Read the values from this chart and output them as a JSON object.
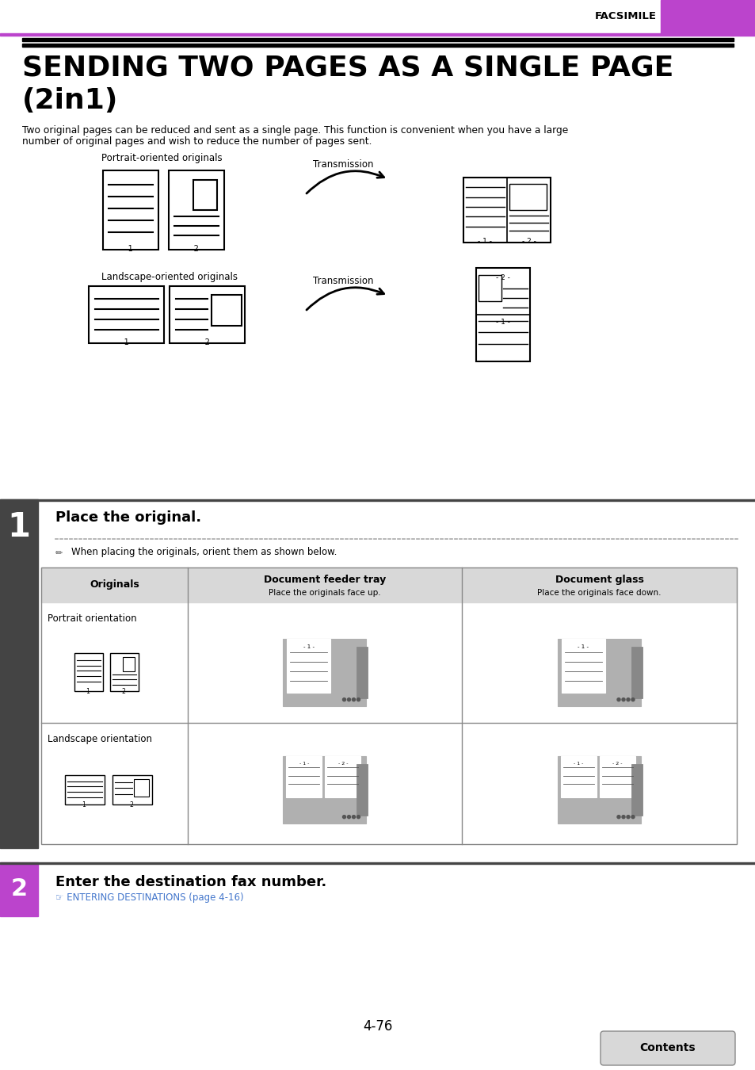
{
  "page_bg": "#ffffff",
  "top_bar_color": "#bb44cc",
  "facsimile_label": "FACSIMILE",
  "title_line1": "SENDING TWO PAGES AS A SINGLE PAGE",
  "title_line2": "(2in1)",
  "body_text1": "Two original pages can be reduced and sent as a single page. This function is convenient when you have a large",
  "body_text2": "number of original pages and wish to reduce the number of pages sent.",
  "portrait_label": "Portrait-oriented originals",
  "landscape_label": "Landscape-oriented originals",
  "transmission_label": "Transmission",
  "step1_title": "Place the original.",
  "step1_note": "When placing the originals, orient them as shown below.",
  "col_originals": "Originals",
  "col_feeder": "Document feeder tray",
  "col_feeder_sub": "Place the originals face up.",
  "col_glass": "Document glass",
  "col_glass_sub": "Place the originals face down.",
  "row_portrait": "Portrait orientation",
  "row_landscape": "Landscape orientation",
  "step2_title": "Enter the destination fax number.",
  "step2_link": "ENTERING DESTINATIONS (page 4-16)",
  "step_number_1": "1",
  "step_number_2": "2",
  "page_number": "4-76",
  "contents_label": "Contents",
  "step1_bar_color": "#555555",
  "step2_bar_color": "#bb44cc",
  "link_color": "#4477cc",
  "black": "#000000",
  "gray_table": "#888888",
  "gray_header": "#d8d8d8",
  "gray_step": "#444444"
}
